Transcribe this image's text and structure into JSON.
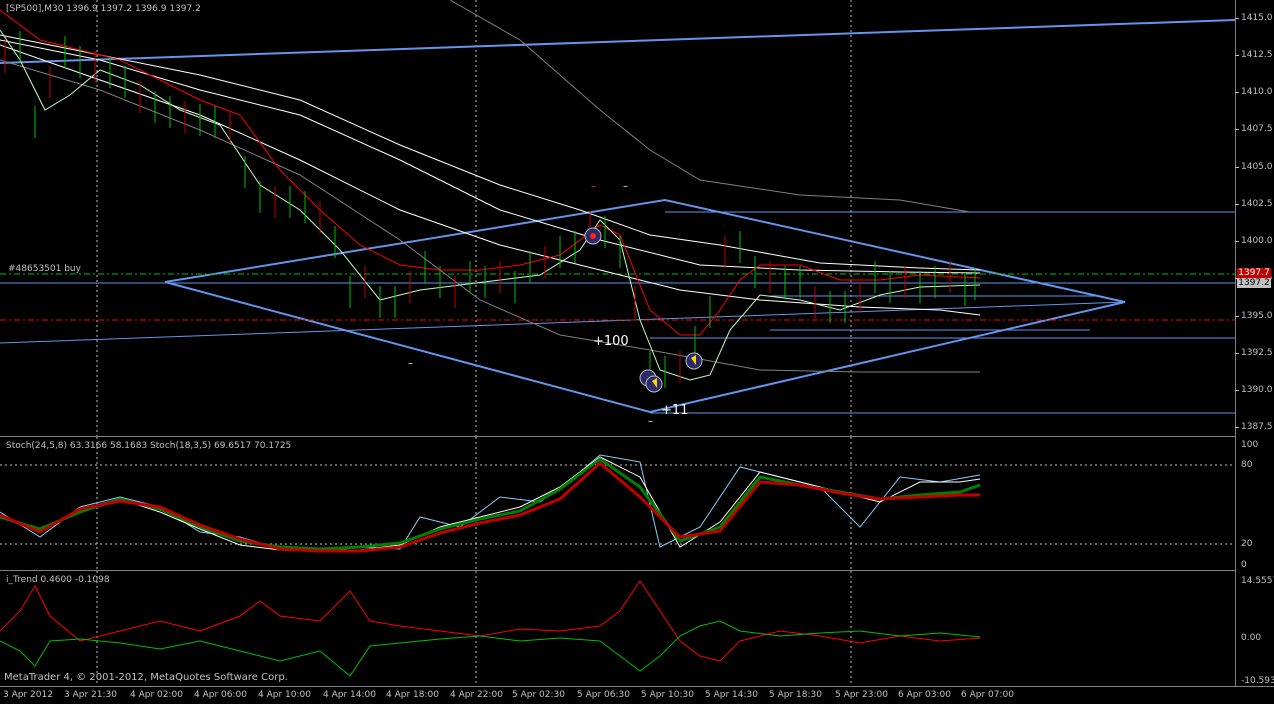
{
  "window": {
    "symbol_header": "[SP500],M30  1396.9 1397.2 1396.9 1397.2",
    "copyright": "MetaTrader 4, © 2001-2012, MetaQuotes Software Corp."
  },
  "main_chart": {
    "order_label": "#48653501 buy",
    "price_axis": [
      "1415.0",
      "1412.5",
      "1410.0",
      "1407.5",
      "1405.0",
      "1402.5",
      "1400.0",
      "1397.5",
      "1395.0",
      "1392.5",
      "1390.0",
      "1387.5"
    ],
    "sell_tag": "1397.7",
    "bid_tag": "1397.2",
    "annotations": {
      "plus100": "+100",
      "plus11": "+11",
      "minus_a": "–",
      "minus_b": "–",
      "minus_c": "–",
      "minus_d": "–"
    },
    "colors": {
      "trendline": "#6495ed",
      "grid": "#c0c0c0",
      "ma_red": "#ff0000",
      "ma_white": "#ffffff",
      "ma_gray": "#808080",
      "candle_green": "#00c000",
      "candle_red": "#c00000"
    }
  },
  "stoch_pane": {
    "header": "Stoch(24,5,8) 63.3166 58.1683  Stoch(18,3,5) 69.6517 70.1725",
    "levels": [
      "100",
      "80",
      "20",
      "0"
    ]
  },
  "trend_pane": {
    "header": "i_Trend 0.4600 -0.1098",
    "levels": [
      "14.5557",
      "0.00",
      "-10.5931"
    ]
  },
  "time_axis": [
    "3 Apr 2012",
    "3 Apr 21:30",
    "4 Apr 02:00",
    "4 Apr 06:00",
    "4 Apr 10:00",
    "4 Apr 14:00",
    "4 Apr 18:00",
    "4 Apr 22:00",
    "5 Apr 02:30",
    "5 Apr 06:30",
    "5 Apr 10:30",
    "5 Apr 14:30",
    "5 Apr 18:30",
    "5 Apr 23:00",
    "6 Apr 03:00",
    "6 Apr 07:00"
  ]
}
